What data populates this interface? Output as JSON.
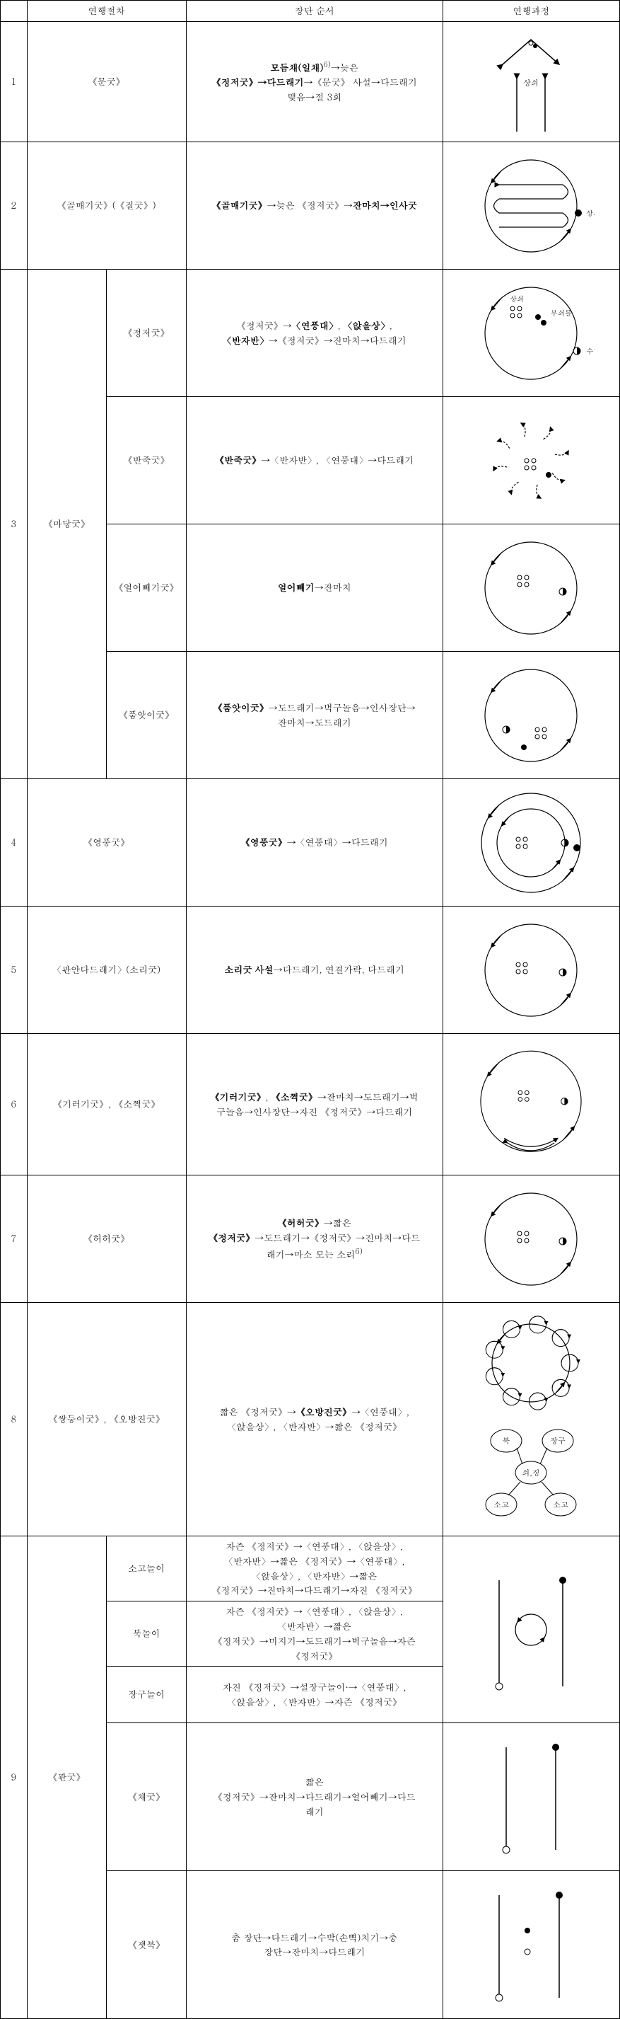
{
  "headers": {
    "h1": "",
    "h2": "연행절차",
    "h3": "장단 순서",
    "h4": "연행과정"
  },
  "rows": [
    {
      "num": "1",
      "proc": "《문굿》",
      "order": "<b>모듬채(일채)</b><sup>6)</sup>→늦은<br><b>《정저굿》→다드래기</b>→《문굿》 사설→다드래기<br>맺음→절 3회"
    },
    {
      "num": "2",
      "proc": "《골매기굿》(《질굿》)",
      "order": "<b>《골매기굿》</b>→늦은 《정저굿》→<b>잔마치→인사굿</b>"
    },
    {
      "num": "3",
      "proc": "《마당굿》",
      "sub": [
        {
          "name": "《정저굿》",
          "order": "《정저굿》→<b>〈연풍대〉</b>, <b>〈앉을상〉</b>,<br><b>〈반자반〉</b>→《정저굿》→진마치→다드래기"
        },
        {
          "name": "《반죽굿》",
          "order": "<b>《반죽굿》</b>→〈반자반〉, 〈연풍대〉→다드래기"
        },
        {
          "name": "《얼어빼기굿》",
          "order": "<b>얼어빼기</b>→잔마치"
        },
        {
          "name": "《품앗이굿》",
          "order": "<b>《품앗이굿》</b>→도드래기→벅구놀음→인사장단→<br>잔마치→도드래기"
        }
      ]
    },
    {
      "num": "4",
      "proc": "《영풍굿》",
      "order": "<b>《영풍굿》</b>→〈연풍대〉→다드래기"
    },
    {
      "num": "5",
      "proc": "〈판안다드래기〉(소리굿)",
      "order": "<b>소리굿 사설</b>→다드래기, 연결가락, 다드래기"
    },
    {
      "num": "6",
      "proc": "《기러기굿》, 《소쩍굿》",
      "order": "<b>《기러기굿》</b>, <b>《소쩍굿》</b>→잔마치→도드래기→벅<br>구놀음→인사장단→자진 《정저굿》→다드래기"
    },
    {
      "num": "7",
      "proc": "《허허굿》",
      "order": "<b>《허허굿》</b>→짧은<br><b>《정저굿》</b>→도드래기→《정저굿》→진마치→다드<br>래기→마소 모는 소리<sup>6)</sup>"
    },
    {
      "num": "8",
      "proc": "《쌍둥이굿》, 《오방진굿》",
      "order": "짧은 《정저굿》→<b>《오방진굿》</b>→〈연풍대〉,<br>〈앉을상〉, 〈반자반〉→짧은 《정저굿》"
    },
    {
      "num": "9",
      "proc": "《판굿》",
      "sub": [
        {
          "name": "소고놀이",
          "order": "자즌 《정저굿》→〈연풍대〉, 〈앉을상〉,<br>〈반자반〉→짧은 《정저굿》→〈연풍대〉,<br>〈앉을상〉, 〈반자반〉→짧은<br>《정저굿》→진마치→다드래기→자진 《정저굿》"
        },
        {
          "name": "북놀이",
          "order": "자즌 《정저굿》→〈연풍대〉, 〈앉을상〉,<br>〈반자반〉→짧은<br>《정저굿》→미지기→도드래기→벅구놀음→자즌<br>《정저굿》"
        },
        {
          "name": "장구놀이",
          "order": "자진 《정저굿》→설장구놀이·→〈연풍대〉,<br>〈앉을상〉, 〈반자반〉→자즌 《정저굿》"
        },
        {
          "name": "《채굿》",
          "order": "짧은<br>《정저굿》→잔마치→다드래기→얼어빼기→다드<br>래기"
        },
        {
          "name": "《잿북》",
          "order": "춤 장단→다드래기→수박(손뼉)치기→충<br>장단→잔마치→다드래기"
        }
      ]
    }
  ],
  "labels": {
    "sangsoi": "상쇠",
    "busoiteul": "부쇠틀",
    "sujing": "수징",
    "buk": "북",
    "janggu": "장구",
    "soijing": "쇠,징",
    "sogo": "소고"
  },
  "style": {
    "stroke": "#000",
    "fill_white": "#fff",
    "fill_black": "#000",
    "font_label": "11px"
  }
}
